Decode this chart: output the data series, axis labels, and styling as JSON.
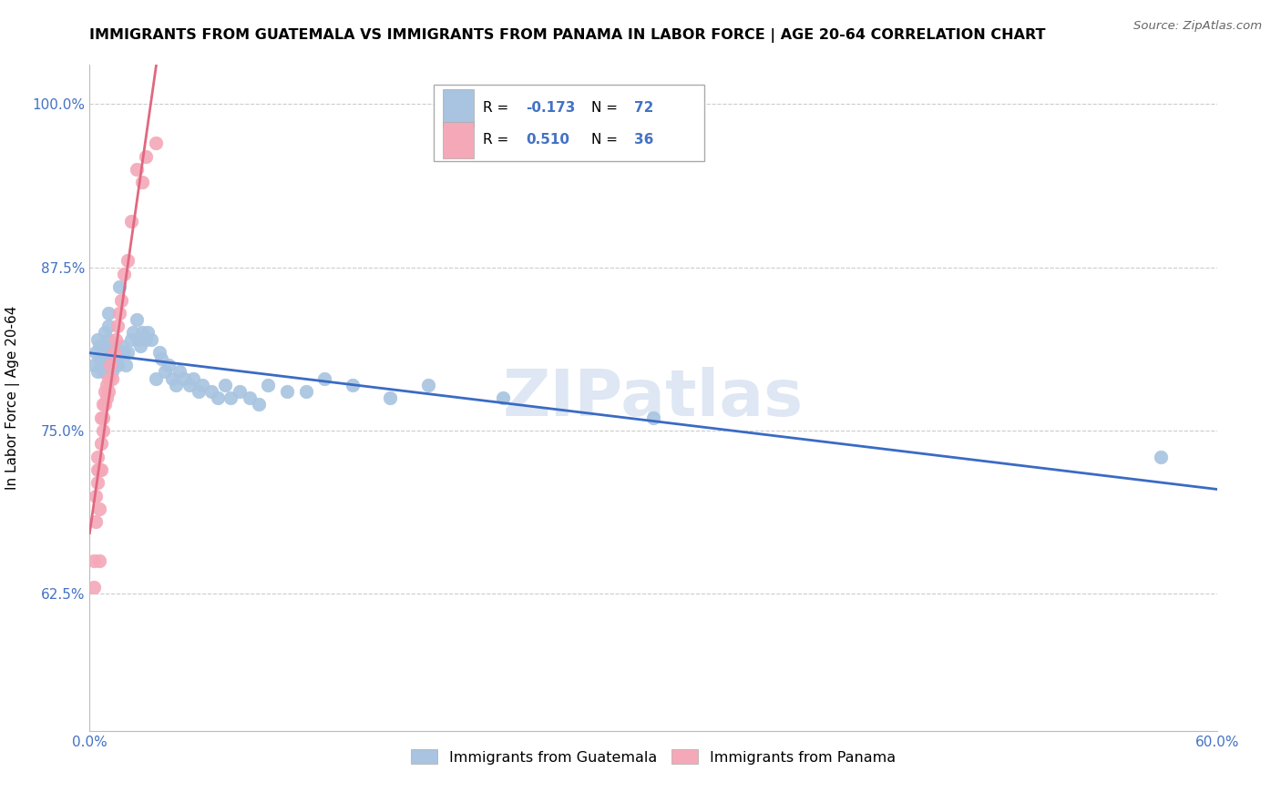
{
  "title": "IMMIGRANTS FROM GUATEMALA VS IMMIGRANTS FROM PANAMA IN LABOR FORCE | AGE 20-64 CORRELATION CHART",
  "source": "Source: ZipAtlas.com",
  "ylabel": "In Labor Force | Age 20-64",
  "xlim": [
    0.0,
    0.6
  ],
  "ylim": [
    0.52,
    1.03
  ],
  "xticks": [
    0.0,
    0.1,
    0.2,
    0.3,
    0.4,
    0.5,
    0.6
  ],
  "yticks": [
    0.625,
    0.75,
    0.875,
    1.0
  ],
  "yticklabels": [
    "62.5%",
    "75.0%",
    "87.5%",
    "100.0%"
  ],
  "guatemala_R": -0.173,
  "guatemala_N": 72,
  "panama_R": 0.51,
  "panama_N": 36,
  "guatemala_color": "#a8c4e0",
  "panama_color": "#f4a8b8",
  "guatemala_line_color": "#3a6bc4",
  "panama_line_color": "#e06880",
  "watermark": "ZIPatlas",
  "watermark_color": "#c8d8ec",
  "guatemala_x": [
    0.002,
    0.003,
    0.004,
    0.004,
    0.005,
    0.005,
    0.006,
    0.006,
    0.007,
    0.007,
    0.008,
    0.008,
    0.008,
    0.009,
    0.009,
    0.01,
    0.01,
    0.01,
    0.01,
    0.01,
    0.011,
    0.012,
    0.012,
    0.013,
    0.013,
    0.014,
    0.015,
    0.015,
    0.016,
    0.017,
    0.018,
    0.019,
    0.02,
    0.022,
    0.023,
    0.025,
    0.026,
    0.027,
    0.028,
    0.03,
    0.031,
    0.033,
    0.035,
    0.037,
    0.038,
    0.04,
    0.042,
    0.044,
    0.046,
    0.048,
    0.05,
    0.053,
    0.055,
    0.058,
    0.06,
    0.065,
    0.068,
    0.072,
    0.075,
    0.08,
    0.085,
    0.09,
    0.095,
    0.105,
    0.115,
    0.125,
    0.14,
    0.16,
    0.18,
    0.22,
    0.3,
    0.57
  ],
  "guatemala_y": [
    0.8,
    0.81,
    0.795,
    0.82,
    0.805,
    0.815,
    0.8,
    0.81,
    0.795,
    0.805,
    0.8,
    0.815,
    0.825,
    0.8,
    0.81,
    0.8,
    0.81,
    0.82,
    0.83,
    0.84,
    0.805,
    0.795,
    0.81,
    0.8,
    0.815,
    0.805,
    0.8,
    0.81,
    0.86,
    0.815,
    0.81,
    0.8,
    0.81,
    0.82,
    0.825,
    0.835,
    0.82,
    0.815,
    0.825,
    0.82,
    0.825,
    0.82,
    0.79,
    0.81,
    0.805,
    0.795,
    0.8,
    0.79,
    0.785,
    0.795,
    0.79,
    0.785,
    0.79,
    0.78,
    0.785,
    0.78,
    0.775,
    0.785,
    0.775,
    0.78,
    0.775,
    0.77,
    0.785,
    0.78,
    0.78,
    0.79,
    0.785,
    0.775,
    0.785,
    0.775,
    0.76,
    0.73
  ],
  "panama_x": [
    0.002,
    0.002,
    0.003,
    0.003,
    0.004,
    0.004,
    0.004,
    0.005,
    0.005,
    0.005,
    0.006,
    0.006,
    0.006,
    0.007,
    0.007,
    0.007,
    0.008,
    0.008,
    0.009,
    0.009,
    0.01,
    0.01,
    0.011,
    0.012,
    0.013,
    0.014,
    0.015,
    0.016,
    0.017,
    0.018,
    0.02,
    0.022,
    0.025,
    0.028,
    0.03,
    0.035
  ],
  "panama_y": [
    0.63,
    0.65,
    0.7,
    0.68,
    0.71,
    0.73,
    0.72,
    0.65,
    0.69,
    0.72,
    0.74,
    0.76,
    0.72,
    0.75,
    0.77,
    0.76,
    0.78,
    0.77,
    0.785,
    0.775,
    0.79,
    0.78,
    0.8,
    0.79,
    0.81,
    0.82,
    0.83,
    0.84,
    0.85,
    0.87,
    0.88,
    0.91,
    0.95,
    0.94,
    0.96,
    0.97
  ],
  "legend_guatemala": "Immigrants from Guatemala",
  "legend_panama": "Immigrants from Panama"
}
